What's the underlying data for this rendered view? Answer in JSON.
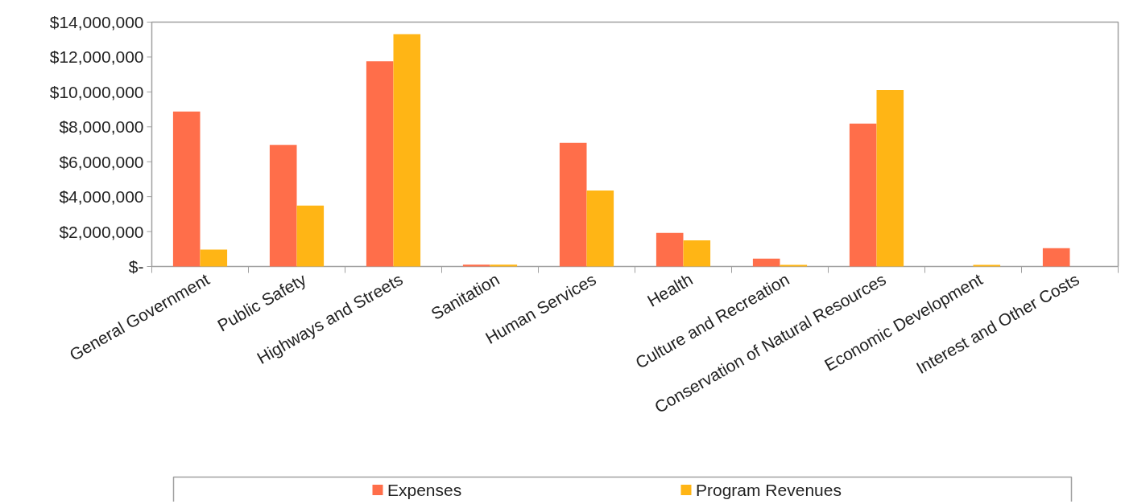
{
  "chart_data": {
    "type": "bar",
    "categories": [
      "General Government",
      "Public Safety",
      "Highways and Streets",
      "Sanitation",
      "Human Services",
      "Health",
      "Culture and Recreation",
      "Conservation of Natural Resources",
      "Economic Development",
      "Interest and Other Costs"
    ],
    "series": [
      {
        "name": "Expenses",
        "color": "#ff6e4a",
        "values": [
          8880000,
          6970000,
          11750000,
          100000,
          7080000,
          1920000,
          450000,
          8190000,
          0,
          1050000
        ]
      },
      {
        "name": "Program Revenues",
        "color": "#ffb515",
        "values": [
          970000,
          3490000,
          13310000,
          100000,
          4350000,
          1500000,
          90000,
          10110000,
          90000,
          0
        ]
      }
    ],
    "ylim": [
      0,
      14000000
    ],
    "yticks": [
      {
        "value": 0,
        "label": "$-"
      },
      {
        "value": 2000000,
        "label": "$2,000,000"
      },
      {
        "value": 4000000,
        "label": "$4,000,000"
      },
      {
        "value": 6000000,
        "label": "$6,000,000"
      },
      {
        "value": 8000000,
        "label": "$8,000,000"
      },
      {
        "value": 10000000,
        "label": "$10,000,000"
      },
      {
        "value": 12000000,
        "label": "$12,000,000"
      },
      {
        "value": 14000000,
        "label": "$14,000,000"
      }
    ],
    "grid": false,
    "legend": "bottom"
  }
}
